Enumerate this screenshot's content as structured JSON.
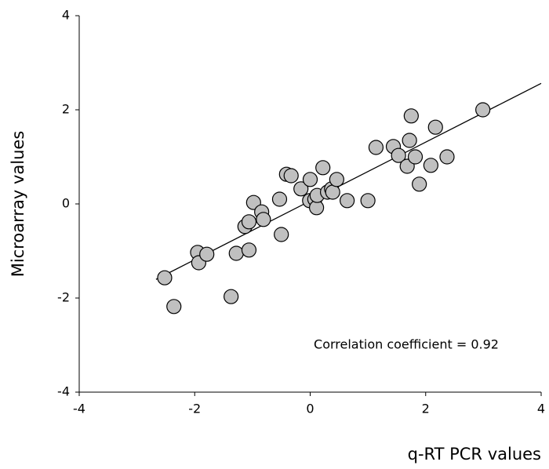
{
  "chart_data": {
    "type": "scatter",
    "x_label": "q-RT PCR values",
    "y_label": "Microarray values",
    "annotation": "Correlation coefficient = 0.92",
    "trendline": true,
    "color": "#c0c0c0",
    "xlim": [
      -4,
      4
    ],
    "xticks": [
      -4,
      -2,
      0,
      2,
      4
    ],
    "ylim": [
      -4,
      4
    ],
    "yticks": [
      -4,
      -2,
      0,
      2,
      4
    ],
    "x": [
      -2.52,
      -2.36,
      -1.95,
      -1.93,
      -1.79,
      -1.37,
      -1.28,
      -1.06,
      -1.13,
      -1.06,
      -0.98,
      -0.84,
      -0.81,
      -0.53,
      -0.5,
      -0.41,
      -0.33,
      -0.16,
      -0.01,
      0,
      0.08,
      0.11,
      0.12,
      0.22,
      0.3,
      0.37,
      0.39,
      0.46,
      0.64,
      1.0,
      1.14,
      1.44,
      1.53,
      1.68,
      1.72,
      1.75,
      1.82,
      1.89,
      2.09,
      2.17,
      2.37,
      2.99
    ],
    "values": [
      -1.57,
      -2.18,
      -1.03,
      -1.25,
      -1.07,
      -1.97,
      -1.05,
      -0.98,
      -0.48,
      -0.38,
      0.03,
      -0.17,
      -0.33,
      0.1,
      -0.65,
      0.63,
      0.6,
      0.32,
      0.07,
      0.52,
      0.1,
      -0.08,
      0.18,
      0.77,
      0.25,
      0.32,
      0.25,
      0.52,
      0.07,
      0.07,
      1.2,
      1.22,
      1.03,
      0.8,
      1.35,
      1.87,
      1.0,
      0.42,
      0.82,
      1.63,
      1.0,
      2.0
    ]
  }
}
